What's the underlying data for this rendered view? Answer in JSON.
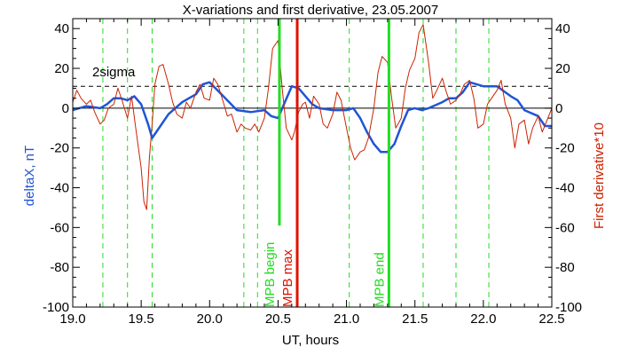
{
  "chart_data": {
    "type": "line",
    "title": "X-variations and first derivative, 23.05.2007",
    "xlabel": "UT, hours",
    "ylabel_left": "deltaX, nT",
    "ylabel_right": "First derivative*10",
    "xlim": [
      19.0,
      22.5
    ],
    "ylim": [
      -100,
      45
    ],
    "x_ticks": [
      "19.0",
      "19.5",
      "20.0",
      "20.5",
      "21.0",
      "21.5",
      "22.0",
      "22.5"
    ],
    "x_tick_values": [
      19.0,
      19.5,
      20.0,
      20.5,
      21.0,
      21.5,
      22.0,
      22.5
    ],
    "y_ticks": [
      "40",
      "20",
      "0",
      "-20",
      "-40",
      "-60",
      "-80",
      "-100"
    ],
    "y_tick_values": [
      40,
      20,
      0,
      -20,
      -40,
      -60,
      -80,
      -100
    ],
    "colors": {
      "deltaX": "#1f55d6",
      "derivative": "#cc2200",
      "mpb": "#22dd22",
      "mpb_max": "#dd1100",
      "axis": "#000000"
    },
    "sigma_level": 11,
    "sigma_label": "2sigma",
    "zero_line": 0,
    "series": [
      {
        "key": "deltaX",
        "x": [
          19.0,
          19.1,
          19.2,
          19.25,
          19.3,
          19.35,
          19.4,
          19.45,
          19.5,
          19.55,
          19.58,
          19.62,
          19.7,
          19.8,
          19.9,
          19.95,
          20.0,
          20.1,
          20.2,
          20.3,
          20.4,
          20.45,
          20.5,
          20.55,
          20.6,
          20.65,
          20.7,
          20.75,
          20.8,
          20.9,
          21.0,
          21.05,
          21.1,
          21.15,
          21.2,
          21.25,
          21.3,
          21.35,
          21.4,
          21.45,
          21.5,
          21.55,
          21.6,
          21.7,
          21.75,
          21.8,
          21.85,
          21.9,
          22.0,
          22.1,
          22.2,
          22.25,
          22.3,
          22.4,
          22.45,
          22.5
        ],
        "values": [
          -1,
          1,
          0,
          2,
          5,
          5,
          4,
          6,
          2,
          -8,
          -15,
          -11,
          -3,
          3,
          7,
          12,
          13,
          6,
          -1,
          -2,
          -1,
          -4,
          -5,
          3,
          11,
          10,
          6,
          2,
          0,
          -1,
          -1,
          0,
          -5,
          -12,
          -18,
          -22,
          -22,
          -18,
          -9,
          -1,
          0,
          -1,
          0,
          3,
          5,
          5,
          8,
          13,
          11,
          11,
          6,
          4,
          -1,
          -4,
          -9,
          -9
        ]
      },
      {
        "key": "derivative",
        "x": [
          19.0,
          19.03,
          19.06,
          19.1,
          19.13,
          19.16,
          19.2,
          19.23,
          19.26,
          19.3,
          19.33,
          19.36,
          19.4,
          19.43,
          19.46,
          19.5,
          19.52,
          19.54,
          19.56,
          19.58,
          19.6,
          19.63,
          19.66,
          19.7,
          19.73,
          19.76,
          19.8,
          19.83,
          19.86,
          19.9,
          19.93,
          19.96,
          20.0,
          20.03,
          20.06,
          20.1,
          20.13,
          20.16,
          20.2,
          20.23,
          20.26,
          20.3,
          20.33,
          20.36,
          20.4,
          20.43,
          20.46,
          20.5,
          20.53,
          20.56,
          20.6,
          20.62,
          20.65,
          20.68,
          20.7,
          20.73,
          20.76,
          20.8,
          20.83,
          20.86,
          20.9,
          20.93,
          20.96,
          21.0,
          21.03,
          21.06,
          21.1,
          21.13,
          21.16,
          21.2,
          21.23,
          21.26,
          21.3,
          21.33,
          21.36,
          21.4,
          21.43,
          21.46,
          21.5,
          21.53,
          21.56,
          21.6,
          21.63,
          21.66,
          21.7,
          21.73,
          21.76,
          21.8,
          21.83,
          21.86,
          21.9,
          21.93,
          21.96,
          22.0,
          22.03,
          22.06,
          22.1,
          22.13,
          22.16,
          22.2,
          22.23,
          22.26,
          22.3,
          22.33,
          22.36,
          22.4,
          22.43,
          22.46,
          22.5
        ],
        "values": [
          3,
          9,
          5,
          2,
          4,
          -2,
          -8,
          -6,
          0,
          2,
          10,
          4,
          -5,
          6,
          -10,
          -30,
          -47,
          -51,
          -25,
          -8,
          12,
          21,
          22,
          12,
          3,
          -3,
          -5,
          3,
          0,
          8,
          12,
          5,
          4,
          15,
          12,
          3,
          -4,
          -3,
          -12,
          -8,
          -10,
          -11,
          -8,
          -12,
          -5,
          10,
          30,
          34,
          10,
          -10,
          -16,
          -12,
          -2,
          2,
          3,
          -5,
          6,
          2,
          -8,
          -10,
          -3,
          8,
          4,
          -10,
          -20,
          -26,
          -22,
          -21,
          -15,
          0,
          18,
          26,
          23,
          5,
          -10,
          -5,
          10,
          19,
          25,
          38,
          42,
          23,
          5,
          9,
          15,
          8,
          2,
          4,
          7,
          12,
          14,
          5,
          -10,
          -8,
          2,
          5,
          9,
          14,
          2,
          -5,
          -20,
          -8,
          -6,
          -18,
          -10,
          -4,
          -12,
          -7,
          0
        ]
      }
    ],
    "vlines_dashed": [
      19.22,
      19.4,
      19.58,
      20.25,
      20.35,
      21.02,
      21.56,
      21.8,
      22.04
    ],
    "vlines_solid": [
      {
        "x": 20.51,
        "top": 45,
        "bottom": -59,
        "color_key": "mpb",
        "label": "MPB begin"
      },
      {
        "x": 20.64,
        "top": 45,
        "bottom": -100,
        "color_key": "mpb_max",
        "label": "MPB max"
      },
      {
        "x": 21.31,
        "top": 45,
        "bottom": -100,
        "color_key": "mpb",
        "label": "MPB end"
      }
    ]
  }
}
